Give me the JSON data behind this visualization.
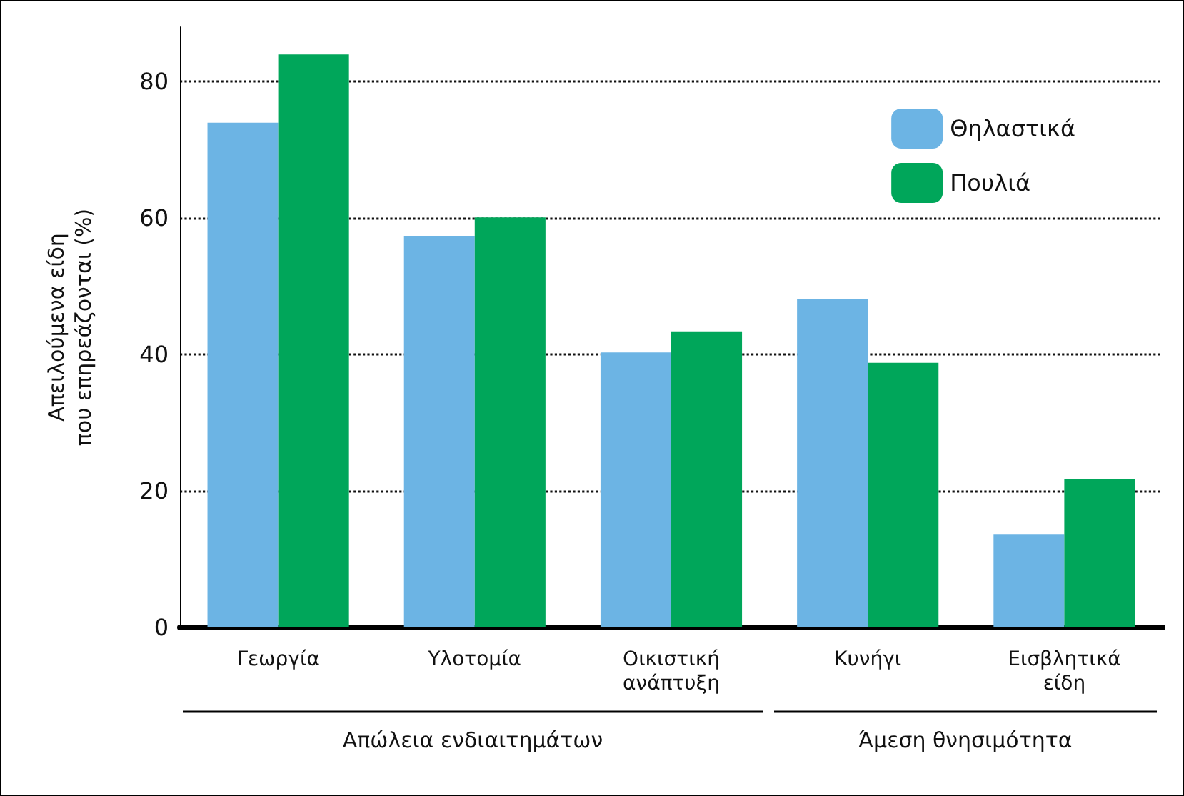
{
  "chart_data": {
    "type": "bar",
    "ylabel": "Απειλούμενα είδη\nπου επηρεάζονται (%)",
    "categories": [
      "Γεωργία",
      "Υλοτομία",
      "Οικιστική ανάπτυξη",
      "Κυνήγι",
      "Εισβλητικά είδη"
    ],
    "series": [
      {
        "name": "Θηλαστικά",
        "color": "#6cb4e4",
        "values": [
          74,
          57.4,
          40.3,
          48.2,
          13.6
        ]
      },
      {
        "name": "Πουλιά",
        "color": "#00a65a",
        "values": [
          84,
          60.1,
          43.4,
          38.8,
          21.7
        ]
      }
    ],
    "ylim": [
      0,
      88
    ],
    "yticks": [
      0,
      20,
      40,
      60,
      80
    ],
    "grid": "y",
    "legend": "top right",
    "annotations": [
      "Απώλεια ενδιαιτημάτων",
      "Άμεση θνησιμότητα"
    ]
  }
}
